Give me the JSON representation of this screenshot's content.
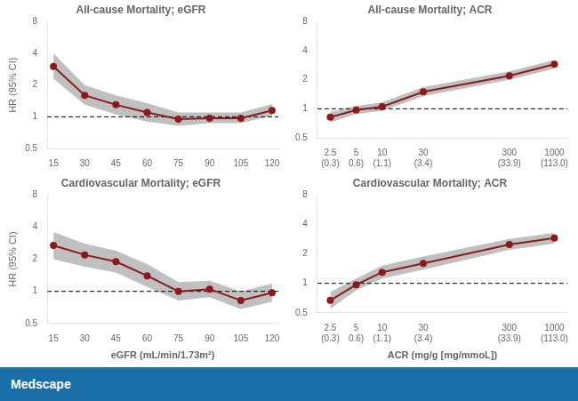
{
  "chart_data": [
    {
      "type": "line",
      "title": "All-cause Mortality; eGFR",
      "x": [
        15,
        30,
        45,
        60,
        75,
        90,
        105,
        120
      ],
      "series": [
        {
          "color": "#8B1A1A",
          "band_color": "#C0C0C0",
          "marker": "circle",
          "line_style": "solid",
          "values": [
            3.0,
            1.6,
            1.3,
            1.1,
            0.95,
            0.97,
            0.97,
            1.15
          ],
          "lower": [
            2.3,
            1.3,
            1.05,
            0.9,
            0.82,
            0.87,
            0.87,
            1.02
          ],
          "upper": [
            4.0,
            2.0,
            1.6,
            1.35,
            1.1,
            1.1,
            1.1,
            1.32
          ]
        }
      ],
      "ylabel": "HR (95% CI)",
      "log": "y",
      "xlim": [
        12,
        123
      ],
      "xticks": [
        15,
        30,
        45,
        60,
        75,
        90,
        105,
        120
      ],
      "ylim": [
        0.5,
        8
      ],
      "yticks": [
        0.5,
        1,
        2,
        4,
        8
      ],
      "grid": false,
      "hline": {
        "value": 1,
        "color": "#000000",
        "line_style": "dashed"
      }
    },
    {
      "type": "line",
      "title": "All-cause Mortality; ACR",
      "x": [
        2.5,
        5,
        10,
        30,
        300,
        1000
      ],
      "series": [
        {
          "color": "#8B1A1A",
          "band_color": "#C0C0C0",
          "marker": "circle",
          "line_style": "solid",
          "values": [
            0.82,
            0.97,
            1.05,
            1.5,
            2.2,
            2.9
          ],
          "lower": [
            0.72,
            0.88,
            0.95,
            1.35,
            2.0,
            2.6
          ],
          "upper": [
            0.93,
            1.07,
            1.17,
            1.68,
            2.45,
            3.2
          ]
        }
      ],
      "log": true,
      "xlim": [
        1.76986,
        1412.538
      ],
      "xticks": [
        {
          "value": 2.5,
          "label": "2.5\n(0.3)"
        },
        {
          "value": 5,
          "label": "5\n0.6)"
        },
        {
          "value": 10,
          "label": "10\n(1.1)"
        },
        {
          "value": 30,
          "label": "30\n(3.4)"
        },
        {
          "value": 300,
          "label": "300\n(33.9)"
        },
        {
          "value": 1000,
          "label": "1000\n(113.0)"
        }
      ],
      "ylim": [
        0.5,
        8
      ],
      "yticks": [
        0.5,
        1,
        2,
        4,
        8
      ],
      "grid": false,
      "hline": {
        "value": 1,
        "color": "#000000",
        "line_style": "dashed"
      }
    },
    {
      "type": "line",
      "title": "Cardiovascular Mortality; eGFR",
      "x": [
        15,
        30,
        45,
        60,
        75,
        90,
        105,
        120
      ],
      "series": [
        {
          "color": "#8B1A1A",
          "band_color": "#C0C0C0",
          "marker": "circle",
          "line_style": "solid",
          "values": [
            2.7,
            2.2,
            1.9,
            1.4,
            1.0,
            1.05,
            0.82,
            0.97
          ],
          "lower": [
            2.0,
            1.7,
            1.5,
            1.1,
            0.82,
            0.88,
            0.68,
            0.8
          ],
          "upper": [
            3.6,
            2.8,
            2.4,
            1.8,
            1.22,
            1.26,
            1.0,
            1.18
          ]
        }
      ],
      "ylabel": "HR (95% CI)",
      "xlabel": "eGFR (mL/min/1.73m²)",
      "log": "y",
      "xlim": [
        12,
        123
      ],
      "xticks": [
        15,
        30,
        45,
        60,
        75,
        90,
        105,
        120
      ],
      "ylim": [
        0.5,
        8
      ],
      "yticks": [
        0.5,
        1,
        2,
        4,
        8
      ],
      "grid": false,
      "hline": {
        "value": 1,
        "color": "#000000",
        "line_style": "dashed"
      }
    },
    {
      "type": "line",
      "title": "Cardiovascular Mortality; ACR",
      "x": [
        2.5,
        5,
        10,
        30,
        300,
        1000
      ],
      "series": [
        {
          "color": "#8B1A1A",
          "band_color": "#C0C0C0",
          "marker": "circle",
          "line_style": "solid",
          "values": [
            0.67,
            0.97,
            1.3,
            1.6,
            2.5,
            2.9
          ],
          "lower": [
            0.55,
            0.85,
            1.12,
            1.38,
            2.2,
            2.55
          ],
          "upper": [
            0.82,
            1.12,
            1.52,
            1.88,
            2.85,
            3.3
          ]
        }
      ],
      "xlabel": "ACR (mg/g [mg/mmoL])",
      "log": true,
      "xlim": [
        1.76986,
        1412.538
      ],
      "xticks": [
        {
          "value": 2.5,
          "label": "2.5\n(0.3)"
        },
        {
          "value": 5,
          "label": "5\n0.6)"
        },
        {
          "value": 10,
          "label": "10\n(1.1)"
        },
        {
          "value": 30,
          "label": "30\n(3.4)"
        },
        {
          "value": 300,
          "label": "300\n(33.9)"
        },
        {
          "value": 1000,
          "label": "1000\n(113.0)"
        }
      ],
      "ylim": [
        0.5,
        8
      ],
      "yticks": [
        0.5,
        1,
        2,
        4,
        8
      ],
      "grid": false,
      "hline": {
        "value": 1,
        "color": "#000000",
        "line_style": "dashed"
      }
    }
  ],
  "footer": {
    "text": "Medscape",
    "color": "#1B6FA8"
  }
}
